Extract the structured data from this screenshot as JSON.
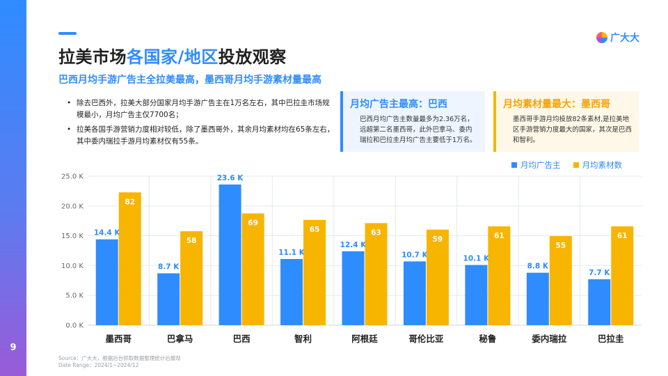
{
  "page": {
    "number": "9"
  },
  "header": {
    "title_main": "拉美市场",
    "title_highlight": "各国家/地区",
    "title_tail": "投放观察",
    "subtitle": "巴西月均手游广告主全拉美最高，墨西哥月均手游素材量最高"
  },
  "logo": {
    "text": "广大大"
  },
  "bullets": [
    "除去巴西外，拉美大部分国家月均手游广告主在1万名左右，其中巴拉圭市场规模最小，月均广告主仅7700名；",
    "拉美各国手游营销力度相对较低，除了墨西哥外，其余月均素材均在65条左右，其中委内瑞拉手游月均素材仅有55条。"
  ],
  "cards": {
    "advertisers": {
      "title": "月均广告主最高：巴西",
      "body": "巴西月均广告主数量最多为2.36万名，远超第二名墨西哥，此外巴拿马、委内瑞拉和巴拉圭月均广告主要低于1万名。"
    },
    "creatives": {
      "title": "月均素材量最大：墨西哥",
      "body": "墨西哥手游月均投放82条素材,是拉美地区手游营销力度最大的国家，其次是巴西和智利。"
    }
  },
  "legend": {
    "advertisers": "月均广告主",
    "creatives": "月均素材数"
  },
  "colors": {
    "advertisers": "#2f8cff",
    "creatives": "#f7b500",
    "accent": "#2f8cff"
  },
  "chart_data": {
    "type": "bar",
    "categories": [
      "墨西哥",
      "巴拿马",
      "巴西",
      "智利",
      "阿根廷",
      "哥伦比亚",
      "秘鲁",
      "委内瑞拉",
      "巴拉圭"
    ],
    "series": [
      {
        "name": "月均广告主",
        "values": [
          14400,
          8700,
          23600,
          11100,
          12400,
          10700,
          10100,
          8800,
          7700
        ],
        "labels": [
          "14.4 K",
          "8.7 K",
          "23.6 K",
          "11.1 K",
          "12.4 K",
          "10.7 K",
          "10.1 K",
          "8.8 K",
          "7.7 K"
        ]
      },
      {
        "name": "月均素材数",
        "values": [
          82,
          58,
          69,
          65,
          63,
          59,
          61,
          55,
          61
        ],
        "labels": [
          "82",
          "58",
          "69",
          "65",
          "63",
          "59",
          "61",
          "55",
          "61"
        ]
      }
    ],
    "ylim": [
      0,
      25000
    ],
    "yticks": [
      "0.0 K",
      "5.0 K",
      "10.0 K",
      "15.0 K",
      "20.0 K",
      "25.0 K"
    ],
    "creatives_scale_max": 92,
    "grid": true,
    "legend_position": "top-right"
  },
  "footer": {
    "source": "Source：广大大，根据后台抓取数据整理统计后展现",
    "date_range": "Date Range：2024/1~2024/12"
  }
}
